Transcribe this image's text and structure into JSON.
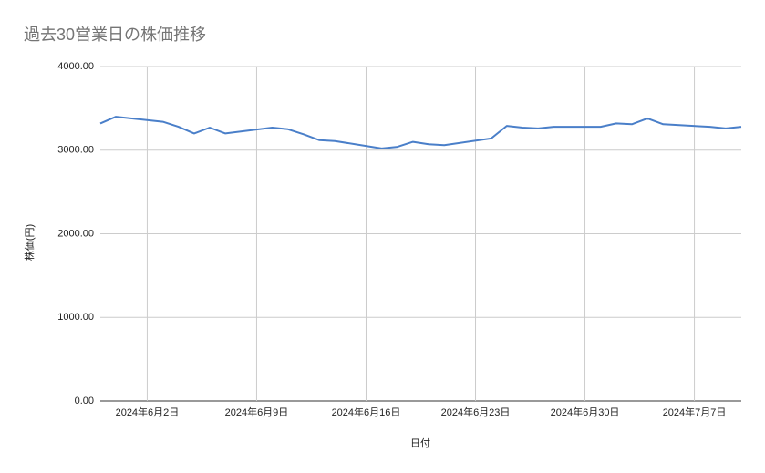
{
  "chart_data": {
    "type": "line",
    "title": "過去30営業日の株価推移",
    "x_label": "日付",
    "y_label": "株価(円)",
    "x": [
      "2024-05-30",
      "2024-05-31",
      "2024-06-03",
      "2024-06-04",
      "2024-06-05",
      "2024-06-06",
      "2024-06-07",
      "2024-06-10",
      "2024-06-11",
      "2024-06-12",
      "2024-06-13",
      "2024-06-14",
      "2024-06-17",
      "2024-06-18",
      "2024-06-19",
      "2024-06-20",
      "2024-06-21",
      "2024-06-24",
      "2024-06-25",
      "2024-06-26",
      "2024-06-27",
      "2024-06-28",
      "2024-07-01",
      "2024-07-02",
      "2024-07-03",
      "2024-07-04",
      "2024-07-05",
      "2024-07-08",
      "2024-07-09",
      "2024-07-10"
    ],
    "series": [
      {
        "color": "#4a7fc9",
        "values": [
          3320,
          3400,
          3340,
          3280,
          3200,
          3270,
          3200,
          3270,
          3250,
          3190,
          3120,
          3110,
          3020,
          3040,
          3100,
          3070,
          3060,
          3140,
          3290,
          3270,
          3260,
          3280,
          3280,
          3320,
          3310,
          3380,
          3310,
          3280,
          3260,
          3280
        ]
      }
    ],
    "xlim": [
      "2024-05-30",
      "2024-07-10"
    ],
    "xticks": [
      {
        "value": "2024-06-02",
        "label": "2024年6月2日"
      },
      {
        "value": "2024-06-09",
        "label": "2024年6月9日"
      },
      {
        "value": "2024-06-16",
        "label": "2024年6月16日"
      },
      {
        "value": "2024-06-23",
        "label": "2024年6月23日"
      },
      {
        "value": "2024-06-30",
        "label": "2024年6月30日"
      },
      {
        "value": "2024-07-07",
        "label": "2024年7月7日"
      }
    ],
    "ylim": [
      0,
      4000
    ],
    "yticks": [
      {
        "value": 0,
        "label": "0.00"
      },
      {
        "value": 1000,
        "label": "1000.00"
      },
      {
        "value": 2000,
        "label": "2000.00"
      },
      {
        "value": 3000,
        "label": "3000.00"
      },
      {
        "value": 4000,
        "label": "4000.00"
      }
    ],
    "grid": true
  }
}
